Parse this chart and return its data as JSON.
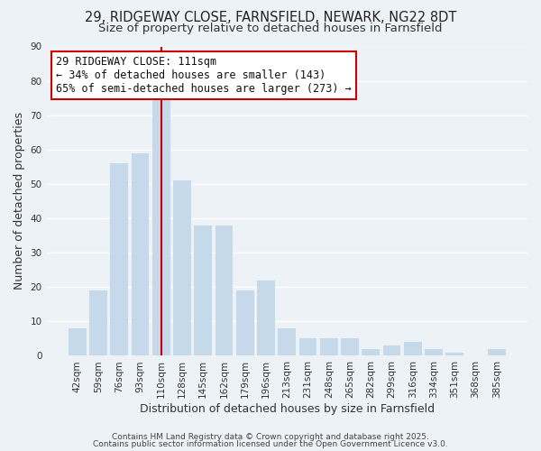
{
  "title": "29, RIDGEWAY CLOSE, FARNSFIELD, NEWARK, NG22 8DT",
  "subtitle": "Size of property relative to detached houses in Farnsfield",
  "xlabel": "Distribution of detached houses by size in Farnsfield",
  "ylabel": "Number of detached properties",
  "categories": [
    "42sqm",
    "59sqm",
    "76sqm",
    "93sqm",
    "110sqm",
    "128sqm",
    "145sqm",
    "162sqm",
    "179sqm",
    "196sqm",
    "213sqm",
    "231sqm",
    "248sqm",
    "265sqm",
    "282sqm",
    "299sqm",
    "316sqm",
    "334sqm",
    "351sqm",
    "368sqm",
    "385sqm"
  ],
  "values": [
    8,
    19,
    56,
    59,
    75,
    51,
    38,
    38,
    19,
    22,
    8,
    5,
    5,
    5,
    2,
    3,
    4,
    2,
    1,
    0,
    2
  ],
  "bar_color": "#c5d9eb",
  "highlight_bar_index": 4,
  "highlight_line_color": "#cc0000",
  "ylim": [
    0,
    90
  ],
  "yticks": [
    0,
    10,
    20,
    30,
    40,
    50,
    60,
    70,
    80,
    90
  ],
  "annotation_box_text": "29 RIDGEWAY CLOSE: 111sqm\n← 34% of detached houses are smaller (143)\n65% of semi-detached houses are larger (273) →",
  "background_color": "#edf2f7",
  "grid_color": "#ffffff",
  "footer_line1": "Contains HM Land Registry data © Crown copyright and database right 2025.",
  "footer_line2": "Contains public sector information licensed under the Open Government Licence v3.0.",
  "title_fontsize": 10.5,
  "subtitle_fontsize": 9.5,
  "axis_label_fontsize": 9,
  "tick_fontsize": 7.5,
  "annotation_fontsize": 8.5,
  "footer_fontsize": 6.5
}
